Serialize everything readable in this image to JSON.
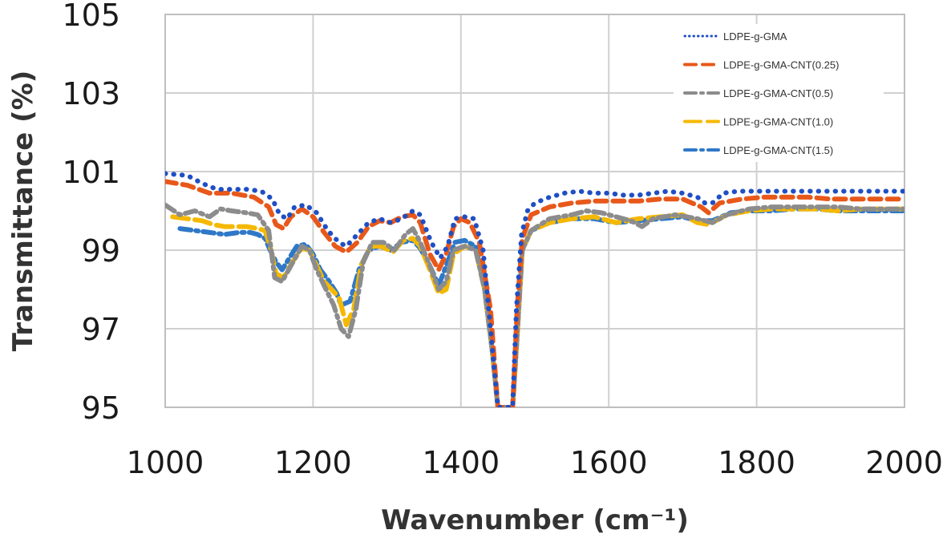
{
  "chart_data": {
    "type": "scatter",
    "title": "",
    "xlabel": "Wavenumber (cm⁻¹)",
    "ylabel": "Transmittance (%)",
    "xlim": [
      1000,
      2000
    ],
    "ylim": [
      95,
      105
    ],
    "xticks": [
      "1000",
      "1200",
      "1400",
      "1600",
      "1800",
      "2000"
    ],
    "yticks": [
      "95",
      "97",
      "99",
      "101",
      "103",
      "105"
    ],
    "grid": true,
    "legend_position": "top-right",
    "series": [
      {
        "name": "LDPE-g-GMA",
        "color": "#1f4fc4",
        "style": "dotted",
        "points": [
          [
            1000,
            100.95
          ],
          [
            1030,
            100.9
          ],
          [
            1050,
            100.7
          ],
          [
            1070,
            100.55
          ],
          [
            1090,
            100.55
          ],
          [
            1110,
            100.55
          ],
          [
            1130,
            100.5
          ],
          [
            1145,
            100.3
          ],
          [
            1155,
            99.9
          ],
          [
            1165,
            99.8
          ],
          [
            1175,
            100.1
          ],
          [
            1190,
            100.15
          ],
          [
            1205,
            99.95
          ],
          [
            1220,
            99.5
          ],
          [
            1235,
            99.2
          ],
          [
            1245,
            99.1
          ],
          [
            1260,
            99.4
          ],
          [
            1275,
            99.7
          ],
          [
            1290,
            99.8
          ],
          [
            1305,
            99.7
          ],
          [
            1320,
            99.8
          ],
          [
            1335,
            100.0
          ],
          [
            1345,
            99.9
          ],
          [
            1360,
            99.2
          ],
          [
            1372,
            98.8
          ],
          [
            1382,
            99.1
          ],
          [
            1392,
            99.8
          ],
          [
            1405,
            99.85
          ],
          [
            1418,
            99.8
          ],
          [
            1430,
            99.0
          ],
          [
            1440,
            97.0
          ],
          [
            1450,
            95.0
          ],
          [
            1470,
            95.0
          ],
          [
            1475,
            97.5
          ],
          [
            1482,
            99.4
          ],
          [
            1490,
            100.0
          ],
          [
            1500,
            100.2
          ],
          [
            1520,
            100.35
          ],
          [
            1540,
            100.45
          ],
          [
            1560,
            100.5
          ],
          [
            1580,
            100.45
          ],
          [
            1600,
            100.45
          ],
          [
            1620,
            100.4
          ],
          [
            1640,
            100.4
          ],
          [
            1660,
            100.45
          ],
          [
            1680,
            100.5
          ],
          [
            1700,
            100.45
          ],
          [
            1720,
            100.35
          ],
          [
            1730,
            100.2
          ],
          [
            1740,
            100.2
          ],
          [
            1755,
            100.45
          ],
          [
            1775,
            100.5
          ],
          [
            1800,
            100.5
          ],
          [
            1825,
            100.5
          ],
          [
            1850,
            100.5
          ],
          [
            1875,
            100.5
          ],
          [
            1900,
            100.5
          ],
          [
            1925,
            100.5
          ],
          [
            1950,
            100.5
          ],
          [
            1975,
            100.5
          ],
          [
            2000,
            100.5
          ]
        ]
      },
      {
        "name": "LDPE-g-GMA-CNT(0.25)",
        "color": "#e8581a",
        "style": "dashed",
        "points": [
          [
            1000,
            100.75
          ],
          [
            1030,
            100.65
          ],
          [
            1060,
            100.45
          ],
          [
            1090,
            100.45
          ],
          [
            1120,
            100.35
          ],
          [
            1140,
            100.1
          ],
          [
            1150,
            99.65
          ],
          [
            1160,
            99.55
          ],
          [
            1170,
            99.85
          ],
          [
            1185,
            100.05
          ],
          [
            1200,
            99.85
          ],
          [
            1215,
            99.45
          ],
          [
            1230,
            99.1
          ],
          [
            1245,
            98.95
          ],
          [
            1260,
            99.2
          ],
          [
            1275,
            99.6
          ],
          [
            1290,
            99.75
          ],
          [
            1305,
            99.7
          ],
          [
            1320,
            99.85
          ],
          [
            1335,
            99.9
          ],
          [
            1345,
            99.7
          ],
          [
            1358,
            98.9
          ],
          [
            1370,
            98.5
          ],
          [
            1380,
            98.9
          ],
          [
            1390,
            99.6
          ],
          [
            1400,
            99.8
          ],
          [
            1412,
            99.7
          ],
          [
            1425,
            99.2
          ],
          [
            1440,
            97.5
          ],
          [
            1450,
            95.0
          ],
          [
            1470,
            95.0
          ],
          [
            1476,
            97.5
          ],
          [
            1483,
            99.3
          ],
          [
            1495,
            99.9
          ],
          [
            1520,
            100.1
          ],
          [
            1550,
            100.2
          ],
          [
            1580,
            100.25
          ],
          [
            1610,
            100.25
          ],
          [
            1640,
            100.25
          ],
          [
            1670,
            100.3
          ],
          [
            1700,
            100.3
          ],
          [
            1725,
            100.1
          ],
          [
            1735,
            99.95
          ],
          [
            1750,
            100.2
          ],
          [
            1780,
            100.3
          ],
          [
            1810,
            100.35
          ],
          [
            1840,
            100.35
          ],
          [
            1870,
            100.35
          ],
          [
            1900,
            100.3
          ],
          [
            1930,
            100.3
          ],
          [
            1960,
            100.3
          ],
          [
            2000,
            100.3
          ]
        ]
      },
      {
        "name": "LDPE-g-GMA-CNT(0.5)",
        "color": "#8c8c8c",
        "style": "dashdot",
        "points": [
          [
            1000,
            100.15
          ],
          [
            1020,
            99.9
          ],
          [
            1040,
            100.0
          ],
          [
            1060,
            99.85
          ],
          [
            1075,
            100.05
          ],
          [
            1090,
            100.0
          ],
          [
            1110,
            99.95
          ],
          [
            1125,
            99.9
          ],
          [
            1140,
            99.5
          ],
          [
            1148,
            98.3
          ],
          [
            1158,
            98.2
          ],
          [
            1170,
            98.6
          ],
          [
            1185,
            99.1
          ],
          [
            1195,
            99.0
          ],
          [
            1205,
            98.5
          ],
          [
            1215,
            98.1
          ],
          [
            1228,
            97.6
          ],
          [
            1238,
            97.0
          ],
          [
            1248,
            96.8
          ],
          [
            1258,
            97.5
          ],
          [
            1268,
            98.7
          ],
          [
            1280,
            99.2
          ],
          [
            1295,
            99.2
          ],
          [
            1310,
            99.0
          ],
          [
            1325,
            99.4
          ],
          [
            1335,
            99.55
          ],
          [
            1345,
            99.2
          ],
          [
            1358,
            98.6
          ],
          [
            1370,
            98.0
          ],
          [
            1380,
            98.2
          ],
          [
            1390,
            99.0
          ],
          [
            1405,
            99.1
          ],
          [
            1420,
            99.0
          ],
          [
            1432,
            98.0
          ],
          [
            1442,
            96.5
          ],
          [
            1450,
            95.0
          ],
          [
            1470,
            95.0
          ],
          [
            1476,
            96.8
          ],
          [
            1483,
            99.0
          ],
          [
            1495,
            99.5
          ],
          [
            1520,
            99.8
          ],
          [
            1550,
            99.9
          ],
          [
            1570,
            100.0
          ],
          [
            1590,
            99.95
          ],
          [
            1610,
            99.85
          ],
          [
            1630,
            99.75
          ],
          [
            1645,
            99.6
          ],
          [
            1660,
            99.8
          ],
          [
            1690,
            99.9
          ],
          [
            1720,
            99.8
          ],
          [
            1740,
            99.7
          ],
          [
            1760,
            99.9
          ],
          [
            1790,
            100.05
          ],
          [
            1820,
            100.1
          ],
          [
            1850,
            100.1
          ],
          [
            1880,
            100.1
          ],
          [
            1910,
            100.1
          ],
          [
            1940,
            100.05
          ],
          [
            1970,
            100.05
          ],
          [
            2000,
            100.05
          ]
        ]
      },
      {
        "name": "LDPE-g-GMA-CNT(1.0)",
        "color": "#f5b800",
        "style": "long-dashed",
        "points": [
          [
            1010,
            99.85
          ],
          [
            1030,
            99.8
          ],
          [
            1050,
            99.75
          ],
          [
            1065,
            99.65
          ],
          [
            1080,
            99.6
          ],
          [
            1095,
            99.6
          ],
          [
            1110,
            99.6
          ],
          [
            1125,
            99.55
          ],
          [
            1135,
            99.5
          ],
          [
            1142,
            99.1
          ],
          [
            1150,
            98.4
          ],
          [
            1160,
            98.3
          ],
          [
            1172,
            98.7
          ],
          [
            1185,
            99.05
          ],
          [
            1195,
            99.0
          ],
          [
            1205,
            98.6
          ],
          [
            1215,
            98.2
          ],
          [
            1225,
            98.0
          ],
          [
            1235,
            97.8
          ],
          [
            1245,
            97.1
          ],
          [
            1255,
            97.5
          ],
          [
            1265,
            98.6
          ],
          [
            1278,
            99.1
          ],
          [
            1292,
            99.1
          ],
          [
            1308,
            98.95
          ],
          [
            1322,
            99.25
          ],
          [
            1335,
            99.3
          ],
          [
            1345,
            99.1
          ],
          [
            1358,
            98.5
          ],
          [
            1370,
            97.9
          ],
          [
            1380,
            98.0
          ],
          [
            1390,
            98.9
          ],
          [
            1405,
            99.1
          ],
          [
            1420,
            99.0
          ],
          [
            1432,
            98.0
          ],
          [
            1442,
            96.5
          ],
          [
            1450,
            95.0
          ],
          [
            1470,
            95.0
          ],
          [
            1476,
            96.8
          ],
          [
            1483,
            99.0
          ],
          [
            1495,
            99.5
          ],
          [
            1520,
            99.7
          ],
          [
            1550,
            99.8
          ],
          [
            1580,
            99.85
          ],
          [
            1610,
            99.7
          ],
          [
            1640,
            99.8
          ],
          [
            1670,
            99.85
          ],
          [
            1700,
            99.9
          ],
          [
            1720,
            99.7
          ],
          [
            1735,
            99.65
          ],
          [
            1760,
            99.9
          ],
          [
            1790,
            100.0
          ],
          [
            1820,
            100.05
          ],
          [
            1850,
            100.05
          ],
          [
            1880,
            100.05
          ],
          [
            1910,
            100.0
          ],
          [
            1940,
            100.05
          ],
          [
            1970,
            100.05
          ],
          [
            2000,
            100.05
          ]
        ]
      },
      {
        "name": "LDPE-g-GMA-CNT(1.5)",
        "color": "#2f78c8",
        "style": "dashdot",
        "points": [
          [
            1020,
            99.55
          ],
          [
            1040,
            99.5
          ],
          [
            1060,
            99.45
          ],
          [
            1080,
            99.4
          ],
          [
            1100,
            99.45
          ],
          [
            1115,
            99.45
          ],
          [
            1125,
            99.4
          ],
          [
            1135,
            99.3
          ],
          [
            1142,
            99.0
          ],
          [
            1150,
            98.7
          ],
          [
            1158,
            98.5
          ],
          [
            1168,
            98.8
          ],
          [
            1178,
            99.1
          ],
          [
            1190,
            99.15
          ],
          [
            1200,
            98.9
          ],
          [
            1210,
            98.5
          ],
          [
            1222,
            98.2
          ],
          [
            1232,
            97.9
          ],
          [
            1238,
            97.6
          ],
          [
            1250,
            97.7
          ],
          [
            1262,
            98.5
          ],
          [
            1275,
            99.0
          ],
          [
            1290,
            99.1
          ],
          [
            1305,
            99.0
          ],
          [
            1320,
            99.2
          ],
          [
            1335,
            99.25
          ],
          [
            1345,
            99.05
          ],
          [
            1358,
            98.6
          ],
          [
            1370,
            98.1
          ],
          [
            1380,
            98.6
          ],
          [
            1392,
            99.2
          ],
          [
            1405,
            99.25
          ],
          [
            1420,
            99.1
          ],
          [
            1432,
            98.0
          ],
          [
            1442,
            96.5
          ],
          [
            1450,
            95.0
          ],
          [
            1470,
            95.0
          ],
          [
            1476,
            96.8
          ],
          [
            1483,
            99.0
          ],
          [
            1495,
            99.5
          ],
          [
            1520,
            99.7
          ],
          [
            1550,
            99.8
          ],
          [
            1580,
            99.8
          ],
          [
            1610,
            99.7
          ],
          [
            1640,
            99.75
          ],
          [
            1670,
            99.8
          ],
          [
            1700,
            99.85
          ],
          [
            1720,
            99.75
          ],
          [
            1740,
            99.75
          ],
          [
            1765,
            99.95
          ],
          [
            1790,
            100.0
          ],
          [
            1820,
            100.0
          ],
          [
            1850,
            100.05
          ],
          [
            1880,
            100.05
          ],
          [
            1910,
            100.0
          ],
          [
            1940,
            100.0
          ],
          [
            1970,
            100.0
          ],
          [
            2000,
            100.0
          ]
        ]
      }
    ]
  }
}
